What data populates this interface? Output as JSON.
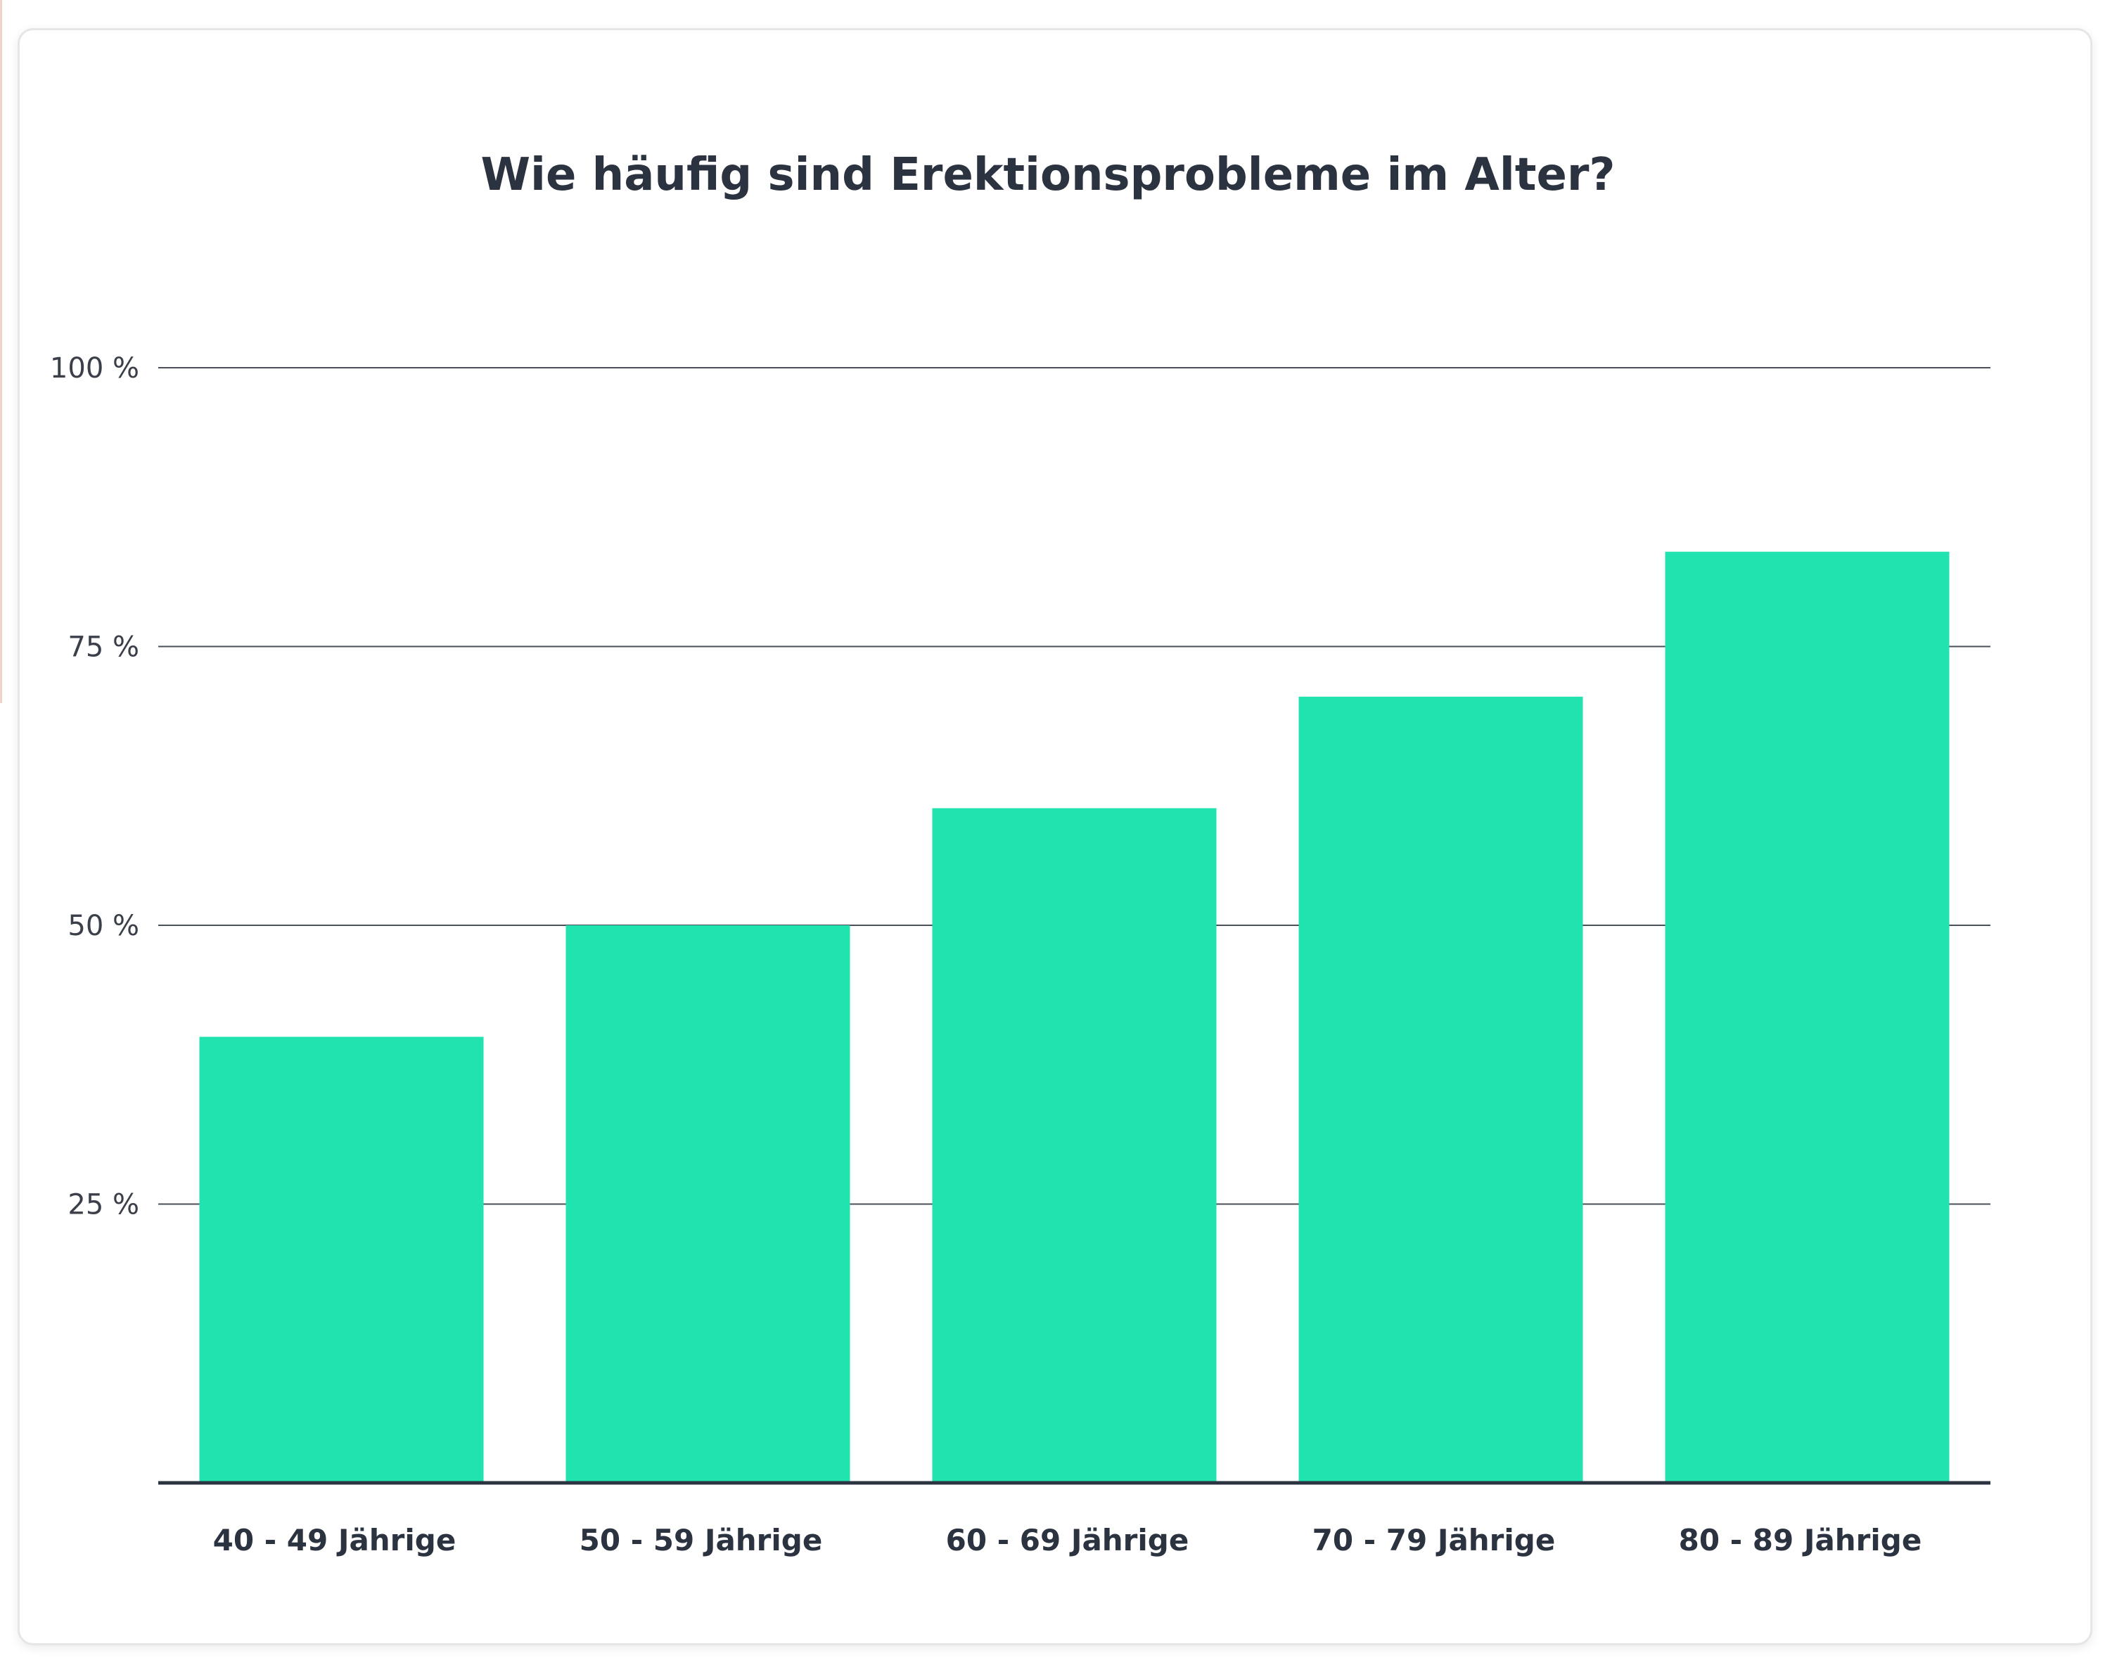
{
  "chart_data": {
    "type": "bar",
    "title": "Wie häufig sind Erektionsprobleme im Alter?",
    "xlabel": "",
    "ylabel": "",
    "categories": [
      "40 - 49 Jährige",
      "50 - 59 Jährige",
      "60 - 69 Jährige",
      "70 - 79 Jährige",
      "80 - 89 Jährige"
    ],
    "values": [
      40,
      50,
      60.5,
      70.5,
      83.5
    ],
    "ylim": [
      0,
      100
    ],
    "yticks": [
      25,
      50,
      75,
      100
    ],
    "ytick_labels": [
      "25 %",
      "50 %",
      "75 %",
      "100 %"
    ],
    "grid": true,
    "legend": "none",
    "bar_color": "#21e3b0"
  }
}
